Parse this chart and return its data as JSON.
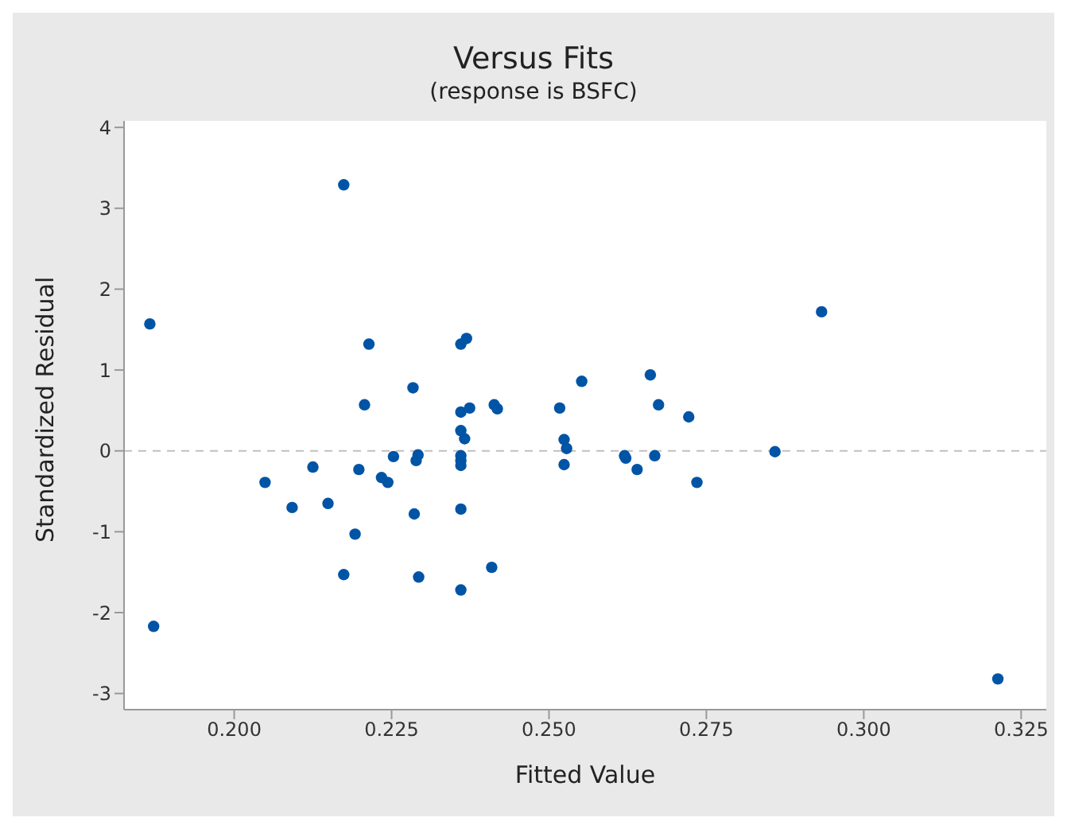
{
  "chart_data": {
    "type": "scatter",
    "title": "Versus Fits",
    "subtitle": "(response is BSFC)",
    "xlabel": "Fitted Value",
    "ylabel": "Standardized Residual",
    "xlim": [
      0.1825,
      0.329
    ],
    "xticks": [
      {
        "value": 0.2,
        "label": "0.200"
      },
      {
        "value": 0.225,
        "label": "0.225"
      },
      {
        "value": 0.25,
        "label": "0.250"
      },
      {
        "value": 0.275,
        "label": "0.275"
      },
      {
        "value": 0.3,
        "label": "0.300"
      },
      {
        "value": 0.325,
        "label": "0.325"
      }
    ],
    "ylim": [
      -3.2,
      4.08
    ],
    "yticks": [
      -3,
      -2,
      -1,
      0,
      1,
      2,
      3,
      4
    ],
    "grid": false,
    "legend": false,
    "marker": "circle",
    "ref_lines": [
      {
        "axis": "y",
        "value": 0,
        "color": "#c0c0c0",
        "line_style": "dashed"
      }
    ],
    "series": [
      {
        "color": "#0054a6",
        "x": [
          0.1866,
          0.1872,
          0.2174,
          0.2214,
          0.2207,
          0.2284,
          0.236,
          0.2369,
          0.236,
          0.2374,
          0.2413,
          0.2418,
          0.2517,
          0.2552,
          0.236,
          0.2366,
          0.236,
          0.236,
          0.236,
          0.2524,
          0.2528,
          0.2524,
          0.2253,
          0.2292,
          0.2289,
          0.2125,
          0.2198,
          0.2234,
          0.2244,
          0.2049,
          0.2092,
          0.2149,
          0.2286,
          0.236,
          0.2192,
          0.2174,
          0.2293,
          0.236,
          0.2409,
          0.2661,
          0.2674,
          0.2722,
          0.262,
          0.2622,
          0.264,
          0.2668,
          0.2735,
          0.2859,
          0.2933,
          0.3213
        ],
        "values": [
          1.57,
          -2.17,
          3.29,
          1.32,
          0.57,
          0.78,
          1.32,
          1.39,
          0.48,
          0.53,
          0.57,
          0.52,
          0.53,
          0.86,
          0.25,
          0.15,
          -0.06,
          -0.12,
          -0.18,
          0.14,
          0.03,
          -0.17,
          -0.07,
          -0.05,
          -0.12,
          -0.2,
          -0.23,
          -0.33,
          -0.39,
          -0.39,
          -0.7,
          -0.65,
          -0.78,
          -0.72,
          -1.03,
          -1.53,
          -1.56,
          -1.72,
          -1.44,
          0.94,
          0.57,
          0.42,
          -0.06,
          -0.09,
          -0.23,
          -0.06,
          -0.39,
          -0.01,
          1.72,
          -2.82
        ]
      }
    ]
  }
}
